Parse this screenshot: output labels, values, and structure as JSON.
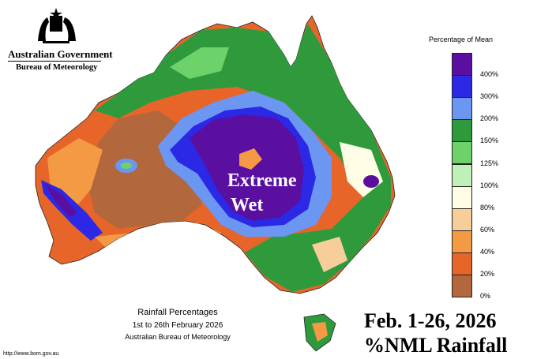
{
  "header": {
    "government": "Australian Government",
    "agency": "Bureau of Meteorology"
  },
  "legend": {
    "title": "Percentage of Mean",
    "items": [
      {
        "label": "400%",
        "color": "#5a0fa0"
      },
      {
        "label": "300%",
        "color": "#2b28e6"
      },
      {
        "label": "200%",
        "color": "#6b96f2"
      },
      {
        "label": "150%",
        "color": "#2e9a3c"
      },
      {
        "label": "125%",
        "color": "#6ed26a"
      },
      {
        "label": "100%",
        "color": "#bff0b8"
      },
      {
        "label": "80%",
        "color": "#fffde6"
      },
      {
        "label": "60%",
        "color": "#f7cd9a"
      },
      {
        "label": "40%",
        "color": "#f49a45"
      },
      {
        "label": "20%",
        "color": "#e8652a"
      },
      {
        "label": "0%",
        "color": "#b2673c"
      }
    ]
  },
  "caption": {
    "title": "Rainfall Percentages",
    "period": "1st to 26th February 2026",
    "credit": "Australian Bureau of Meteorology",
    "url": "http://www.bom.gov.au"
  },
  "annotation": {
    "extreme": "Extreme",
    "wet": "Wet"
  },
  "overlay": {
    "line1": "Feb. 1-26, 2026",
    "line2": "%NML Rainfall"
  }
}
